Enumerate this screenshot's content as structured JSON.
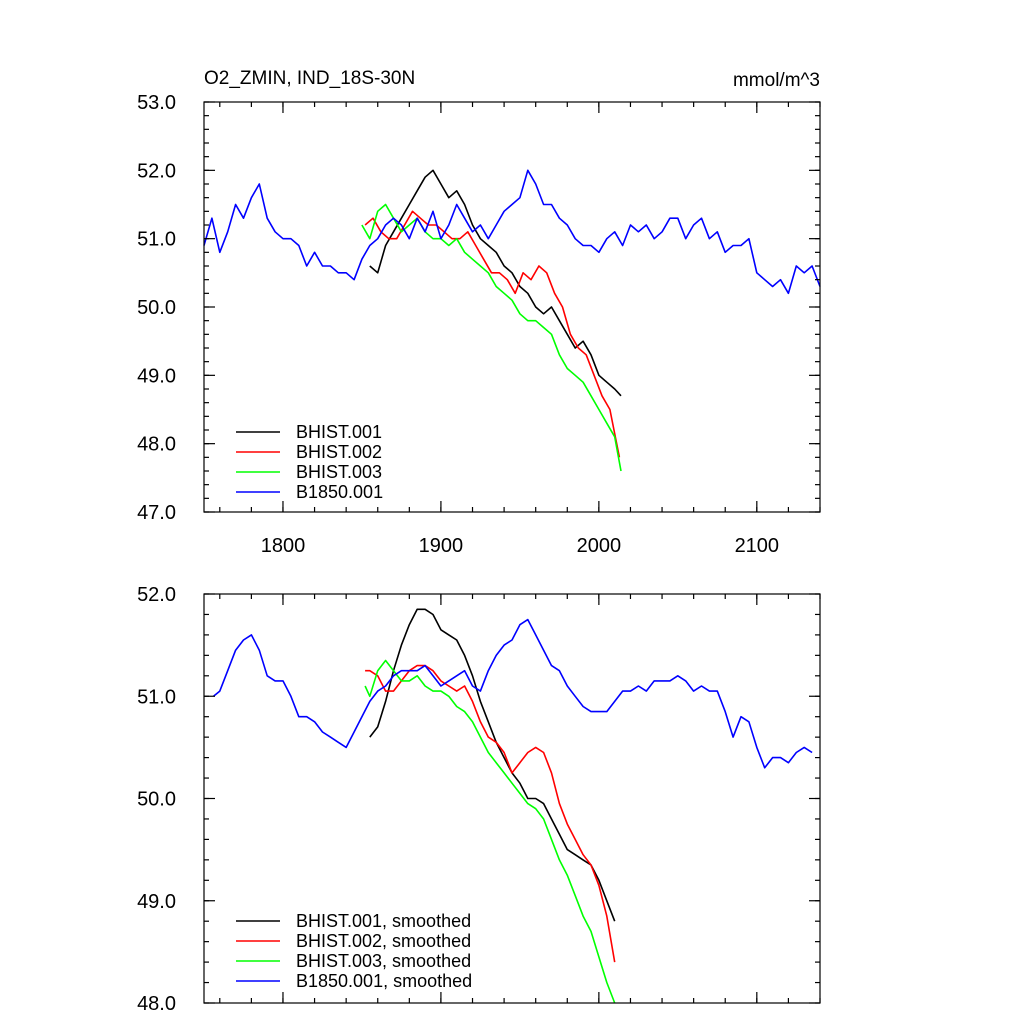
{
  "figure": {
    "title_left": "O2_ZMIN, IND_18S-30N",
    "title_right": "mmol/m^3"
  },
  "chart_data": [
    {
      "type": "line",
      "xlim": [
        1750,
        2140
      ],
      "ylim": [
        47.0,
        53.0
      ],
      "x_ticks": [
        1800,
        1900,
        2000,
        2100
      ],
      "x_tick_labels": [
        "1800",
        "1900",
        "2000",
        "2100"
      ],
      "y_ticks": [
        47.0,
        48.0,
        49.0,
        50.0,
        51.0,
        52.0,
        53.0
      ],
      "y_tick_labels": [
        "47.0",
        "48.0",
        "49.0",
        "50.0",
        "51.0",
        "52.0",
        "53.0"
      ],
      "legend_position": "bottom-left",
      "grid": false,
      "series": [
        {
          "name": "BHIST.001",
          "color": "#000000",
          "x": [
            1855,
            1860,
            1865,
            1870,
            1875,
            1880,
            1885,
            1890,
            1895,
            1900,
            1905,
            1910,
            1915,
            1920,
            1925,
            1930,
            1935,
            1940,
            1945,
            1950,
            1955,
            1960,
            1965,
            1970,
            1975,
            1980,
            1985,
            1990,
            1995,
            2000,
            2005,
            2010,
            2014
          ],
          "y": [
            50.6,
            50.5,
            50.9,
            51.1,
            51.3,
            51.5,
            51.7,
            51.9,
            52.0,
            51.8,
            51.6,
            51.7,
            51.5,
            51.2,
            51.0,
            50.9,
            50.8,
            50.6,
            50.5,
            50.3,
            50.2,
            50.0,
            49.9,
            50.0,
            49.8,
            49.6,
            49.4,
            49.5,
            49.3,
            49.0,
            48.9,
            48.8,
            48.7
          ]
        },
        {
          "name": "BHIST.002",
          "color": "#ff0000",
          "x": [
            1852,
            1857,
            1862,
            1867,
            1872,
            1877,
            1882,
            1887,
            1892,
            1897,
            1902,
            1907,
            1912,
            1917,
            1922,
            1927,
            1932,
            1937,
            1942,
            1947,
            1952,
            1957,
            1962,
            1967,
            1972,
            1977,
            1982,
            1987,
            1992,
            1997,
            2002,
            2007,
            2013
          ],
          "y": [
            51.2,
            51.3,
            51.1,
            51.0,
            51.0,
            51.2,
            51.4,
            51.3,
            51.2,
            51.2,
            51.1,
            51.0,
            51.0,
            51.1,
            50.9,
            50.7,
            50.5,
            50.5,
            50.4,
            50.2,
            50.5,
            50.4,
            50.6,
            50.5,
            50.2,
            50.0,
            49.6,
            49.4,
            49.3,
            49.0,
            48.7,
            48.5,
            47.8
          ]
        },
        {
          "name": "BHIST.003",
          "color": "#00ff00",
          "x": [
            1850,
            1855,
            1860,
            1865,
            1870,
            1875,
            1880,
            1885,
            1890,
            1895,
            1900,
            1905,
            1910,
            1915,
            1920,
            1925,
            1930,
            1935,
            1940,
            1945,
            1950,
            1955,
            1960,
            1965,
            1970,
            1975,
            1980,
            1985,
            1990,
            1995,
            2000,
            2005,
            2010,
            2014
          ],
          "y": [
            51.2,
            51.0,
            51.4,
            51.5,
            51.3,
            51.1,
            51.2,
            51.3,
            51.1,
            51.0,
            51.0,
            50.9,
            51.0,
            50.8,
            50.7,
            50.6,
            50.5,
            50.3,
            50.2,
            50.1,
            49.9,
            49.8,
            49.8,
            49.7,
            49.6,
            49.3,
            49.1,
            49.0,
            48.9,
            48.7,
            48.5,
            48.3,
            48.1,
            47.6
          ]
        },
        {
          "name": "B1850.001",
          "color": "#0000ff",
          "x": [
            1750,
            1755,
            1760,
            1765,
            1770,
            1775,
            1780,
            1785,
            1790,
            1795,
            1800,
            1805,
            1810,
            1815,
            1820,
            1825,
            1830,
            1835,
            1840,
            1845,
            1850,
            1855,
            1860,
            1865,
            1870,
            1875,
            1880,
            1885,
            1890,
            1895,
            1900,
            1905,
            1910,
            1915,
            1920,
            1925,
            1930,
            1935,
            1940,
            1945,
            1950,
            1955,
            1960,
            1965,
            1970,
            1975,
            1980,
            1985,
            1990,
            1995,
            2000,
            2005,
            2010,
            2015,
            2020,
            2025,
            2030,
            2035,
            2040,
            2045,
            2050,
            2055,
            2060,
            2065,
            2070,
            2075,
            2080,
            2085,
            2090,
            2095,
            2100,
            2105,
            2110,
            2115,
            2120,
            2125,
            2130,
            2135,
            2140
          ],
          "y": [
            50.9,
            51.3,
            50.8,
            51.1,
            51.5,
            51.3,
            51.6,
            51.8,
            51.3,
            51.1,
            51.0,
            51.0,
            50.9,
            50.6,
            50.8,
            50.6,
            50.6,
            50.5,
            50.5,
            50.4,
            50.7,
            50.9,
            51.0,
            51.2,
            51.3,
            51.2,
            51.0,
            51.3,
            51.1,
            51.4,
            51.0,
            51.2,
            51.5,
            51.3,
            51.1,
            51.2,
            51.0,
            51.2,
            51.4,
            51.5,
            51.6,
            52.0,
            51.8,
            51.5,
            51.5,
            51.3,
            51.2,
            51.0,
            50.9,
            50.9,
            50.8,
            51.0,
            51.1,
            50.9,
            51.2,
            51.1,
            51.2,
            51.0,
            51.1,
            51.3,
            51.3,
            51.0,
            51.2,
            51.3,
            51.0,
            51.1,
            50.8,
            50.9,
            50.9,
            51.0,
            50.5,
            50.4,
            50.3,
            50.4,
            50.2,
            50.6,
            50.5,
            50.6,
            50.3
          ]
        }
      ]
    },
    {
      "type": "line",
      "xlim": [
        1750,
        2140
      ],
      "ylim": [
        48.0,
        52.0
      ],
      "x_ticks": [
        1800,
        1900,
        2000,
        2100
      ],
      "x_tick_labels": [],
      "y_ticks": [
        48.0,
        49.0,
        50.0,
        51.0,
        52.0
      ],
      "y_tick_labels": [
        "48.0",
        "49.0",
        "50.0",
        "51.0",
        "52.0"
      ],
      "legend_position": "bottom-left",
      "grid": false,
      "series": [
        {
          "name": "BHIST.001, smoothed",
          "color": "#000000",
          "x": [
            1855,
            1860,
            1865,
            1870,
            1875,
            1880,
            1885,
            1890,
            1895,
            1900,
            1905,
            1910,
            1915,
            1920,
            1925,
            1930,
            1935,
            1940,
            1945,
            1950,
            1955,
            1960,
            1965,
            1970,
            1975,
            1980,
            1985,
            1990,
            1995,
            2000,
            2005,
            2010
          ],
          "y": [
            50.6,
            50.7,
            50.95,
            51.25,
            51.5,
            51.7,
            51.85,
            51.85,
            51.8,
            51.65,
            51.6,
            51.55,
            51.4,
            51.2,
            50.95,
            50.75,
            50.55,
            50.4,
            50.25,
            50.15,
            50.0,
            50.0,
            49.95,
            49.8,
            49.65,
            49.5,
            49.45,
            49.4,
            49.35,
            49.2,
            49.0,
            48.8
          ]
        },
        {
          "name": "BHIST.002, smoothed",
          "color": "#ff0000",
          "x": [
            1852,
            1855,
            1860,
            1865,
            1870,
            1875,
            1880,
            1885,
            1890,
            1895,
            1900,
            1905,
            1910,
            1915,
            1920,
            1925,
            1930,
            1935,
            1940,
            1945,
            1950,
            1955,
            1960,
            1965,
            1970,
            1975,
            1980,
            1985,
            1990,
            1995,
            2000,
            2005,
            2010
          ],
          "y": [
            51.25,
            51.25,
            51.2,
            51.05,
            51.05,
            51.15,
            51.25,
            51.3,
            51.3,
            51.25,
            51.15,
            51.1,
            51.05,
            51.1,
            50.95,
            50.75,
            50.6,
            50.55,
            50.45,
            50.25,
            50.35,
            50.45,
            50.5,
            50.45,
            50.25,
            49.95,
            49.75,
            49.6,
            49.45,
            49.35,
            49.15,
            48.85,
            48.4
          ]
        },
        {
          "name": "BHIST.003, smoothed",
          "color": "#00ff00",
          "x": [
            1852,
            1855,
            1860,
            1865,
            1870,
            1875,
            1880,
            1885,
            1890,
            1895,
            1900,
            1905,
            1910,
            1915,
            1920,
            1925,
            1930,
            1935,
            1940,
            1945,
            1950,
            1955,
            1960,
            1965,
            1970,
            1975,
            1980,
            1985,
            1990,
            1995,
            2000,
            2005,
            2010
          ],
          "y": [
            51.1,
            51.0,
            51.25,
            51.35,
            51.25,
            51.15,
            51.15,
            51.2,
            51.1,
            51.05,
            51.05,
            51.0,
            50.9,
            50.85,
            50.75,
            50.6,
            50.45,
            50.35,
            50.25,
            50.15,
            50.05,
            49.95,
            49.9,
            49.8,
            49.6,
            49.4,
            49.25,
            49.05,
            48.85,
            48.7,
            48.45,
            48.2,
            48.0
          ]
        },
        {
          "name": "B1850.001, smoothed",
          "color": "#0000ff",
          "x": [
            1756,
            1760,
            1765,
            1770,
            1775,
            1780,
            1785,
            1790,
            1795,
            1800,
            1805,
            1810,
            1815,
            1820,
            1825,
            1830,
            1835,
            1840,
            1845,
            1850,
            1855,
            1860,
            1865,
            1870,
            1875,
            1880,
            1885,
            1890,
            1895,
            1900,
            1905,
            1910,
            1915,
            1920,
            1925,
            1930,
            1935,
            1940,
            1945,
            1950,
            1955,
            1960,
            1965,
            1970,
            1975,
            1980,
            1985,
            1990,
            1995,
            2000,
            2005,
            2010,
            2015,
            2020,
            2025,
            2030,
            2035,
            2040,
            2045,
            2050,
            2055,
            2060,
            2065,
            2070,
            2075,
            2080,
            2085,
            2090,
            2095,
            2100,
            2105,
            2110,
            2115,
            2120,
            2125,
            2130,
            2135
          ],
          "y": [
            51.0,
            51.05,
            51.25,
            51.45,
            51.55,
            51.6,
            51.45,
            51.2,
            51.15,
            51.15,
            51.0,
            50.8,
            50.8,
            50.75,
            50.65,
            50.6,
            50.55,
            50.5,
            50.65,
            50.8,
            50.95,
            51.05,
            51.1,
            51.2,
            51.25,
            51.25,
            51.25,
            51.3,
            51.2,
            51.1,
            51.15,
            51.2,
            51.25,
            51.1,
            51.05,
            51.25,
            51.4,
            51.5,
            51.55,
            51.7,
            51.75,
            51.6,
            51.45,
            51.3,
            51.25,
            51.1,
            51.0,
            50.9,
            50.85,
            50.85,
            50.85,
            50.95,
            51.05,
            51.05,
            51.1,
            51.05,
            51.15,
            51.15,
            51.15,
            51.2,
            51.15,
            51.05,
            51.1,
            51.05,
            51.05,
            50.85,
            50.6,
            50.8,
            50.75,
            50.5,
            50.3,
            50.4,
            50.4,
            50.35,
            50.45,
            50.5,
            50.45
          ]
        }
      ]
    }
  ]
}
